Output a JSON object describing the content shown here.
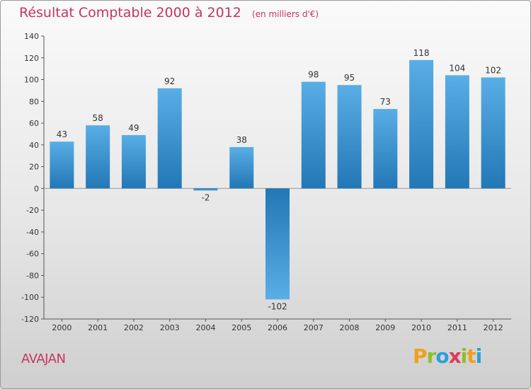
{
  "header": {
    "title": "Résultat Comptable 2000 à 2012",
    "unit": "(en milliers d'€)"
  },
  "footer": {
    "commune": "AVAJAN",
    "logo_letters": [
      "P",
      "r",
      "o",
      "x",
      "i",
      "t",
      "i"
    ]
  },
  "chart_data": {
    "type": "bar",
    "title": "Résultat Comptable 2000 à 2012",
    "subtitle": "(en milliers d'€)",
    "xlabel": "",
    "ylabel": "",
    "categories": [
      "2000",
      "2001",
      "2002",
      "2003",
      "2004",
      "2005",
      "2006",
      "2007",
      "2008",
      "2009",
      "2010",
      "2011",
      "2012"
    ],
    "values": [
      43,
      58,
      49,
      92,
      -2,
      38,
      -102,
      98,
      95,
      73,
      118,
      104,
      102
    ],
    "labels": [
      "43",
      "58",
      "49",
      "92",
      "-2",
      "38",
      "-102",
      "98",
      "95",
      "73",
      "118",
      "104",
      "102"
    ],
    "ylim": [
      -120,
      140
    ],
    "yticks": [
      140,
      120,
      100,
      80,
      60,
      40,
      20,
      0,
      -20,
      -40,
      -60,
      -80,
      -100,
      -120
    ],
    "ytick_labels": [
      "140",
      "120",
      "100",
      "80",
      "60",
      "40",
      "20",
      "0",
      "-20",
      "-40",
      "-60",
      "-80",
      "-100",
      "-120"
    ],
    "grid": false,
    "colors": {
      "bar_light": "#5aaee6",
      "bar_dark": "#2277b5",
      "axis": "#555555"
    }
  }
}
